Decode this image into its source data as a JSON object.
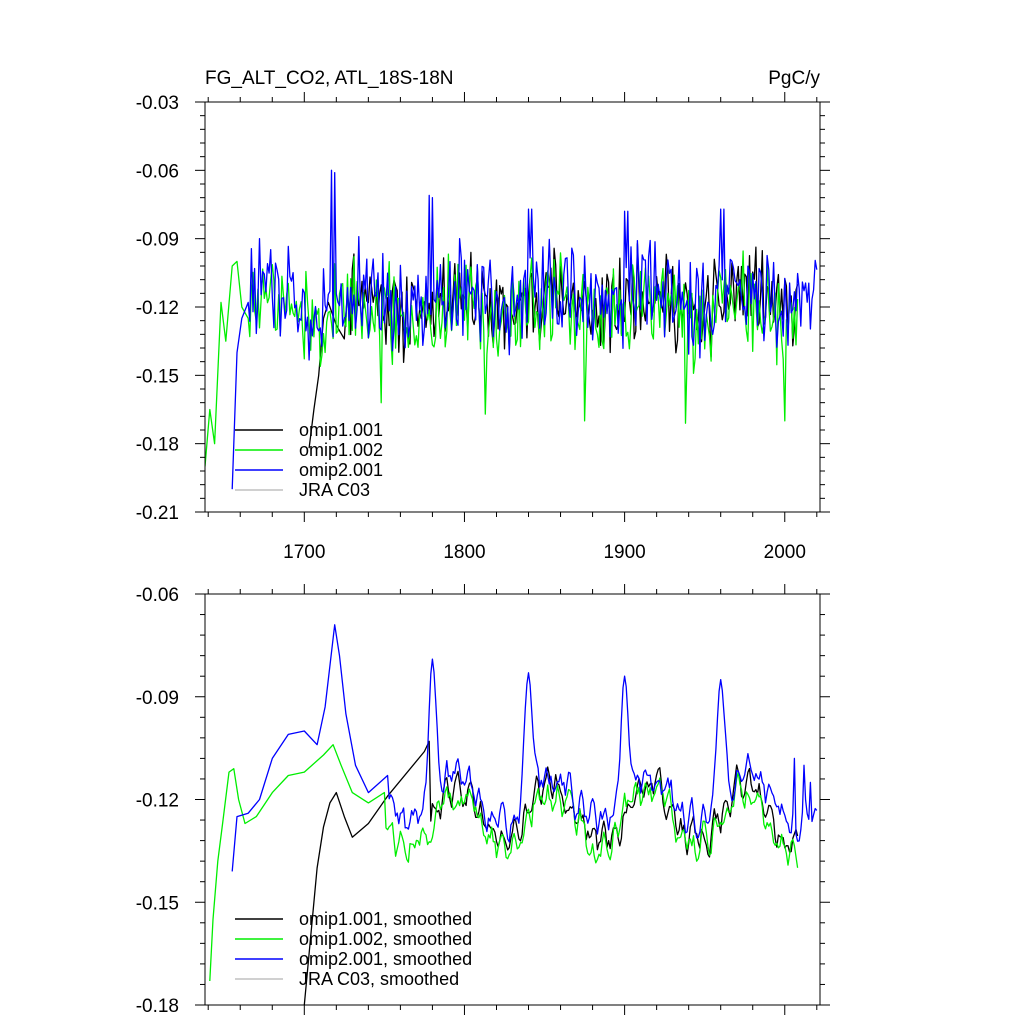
{
  "chart_data": [
    {
      "type": "line",
      "title_left": "FG_ALT_CO2, ATL_18S-18N",
      "title_right": "PgC/y",
      "xlabel": "",
      "ylabel": "",
      "xlim": [
        1638,
        2022
      ],
      "ylim": [
        -0.21,
        -0.03
      ],
      "xticks": [
        1700,
        1800,
        1900,
        2000
      ],
      "xtick_labels": [
        "1700",
        "1800",
        "1900",
        "2000"
      ],
      "yticks": [
        -0.21,
        -0.18,
        -0.15,
        -0.12,
        -0.09,
        -0.06,
        -0.03
      ],
      "ytick_labels": [
        "-0.21",
        "-0.18",
        "-0.15",
        "-0.12",
        "-0.09",
        "-0.06",
        "-0.03"
      ],
      "grid": false,
      "legend_position": "lower-left",
      "series": [
        {
          "name": "omip1.001",
          "color": "#000000",
          "start": 1703,
          "end": 2008,
          "base": -0.118,
          "amp": 0.012,
          "noise": 0.012,
          "points": [
            [
              1703,
              -0.182
            ],
            [
              1706,
              -0.165
            ],
            [
              1709,
              -0.15
            ],
            [
              1712,
              -0.125
            ],
            [
              1715,
              -0.118
            ],
            [
              1720,
              -0.128
            ],
            [
              1725,
              -0.134
            ]
          ]
        },
        {
          "name": "omip1.002",
          "color": "#00ee00",
          "start": 1638,
          "end": 2008,
          "base": -0.121,
          "amp": 0.01,
          "noise": 0.014,
          "points": [
            [
              1638,
              -0.19
            ],
            [
              1641,
              -0.165
            ],
            [
              1644,
              -0.18
            ],
            [
              1648,
              -0.118
            ],
            [
              1651,
              -0.135
            ],
            [
              1655,
              -0.102
            ],
            [
              1658,
              -0.1
            ],
            [
              1661,
              -0.12
            ],
            [
              1665,
              -0.125
            ]
          ],
          "spikes": [
            [
              1748,
              -0.162
            ],
            [
              1813,
              -0.167
            ],
            [
              1875,
              -0.17
            ],
            [
              1938,
              -0.171
            ],
            [
              2000,
              -0.17
            ]
          ]
        },
        {
          "name": "omip2.001",
          "color": "#0000ff",
          "start": 1655,
          "end": 2020,
          "base": -0.116,
          "amp": 0.012,
          "noise": 0.013,
          "points": [
            [
              1655,
              -0.2
            ],
            [
              1658,
              -0.14
            ],
            [
              1661,
              -0.125
            ],
            [
              1665,
              -0.118
            ]
          ],
          "spikes": [
            [
              1717,
              -0.06
            ],
            [
              1719,
              -0.061
            ],
            [
              1778,
              -0.071
            ],
            [
              1780,
              -0.072
            ],
            [
              1840,
              -0.077
            ],
            [
              1842,
              -0.077
            ],
            [
              1900,
              -0.078
            ],
            [
              1902,
              -0.078
            ],
            [
              1960,
              -0.077
            ],
            [
              1962,
              -0.077
            ]
          ]
        },
        {
          "name": "JRA C03",
          "color": "#c0c0c0",
          "values": []
        }
      ]
    },
    {
      "type": "line",
      "title_left": "",
      "title_right": "",
      "xlabel": "",
      "ylabel": "",
      "xlim": [
        1638,
        2022
      ],
      "ylim": [
        -0.18,
        -0.06
      ],
      "xticks": [
        1700,
        1800,
        1900,
        2000
      ],
      "xtick_labels": [],
      "yticks": [
        -0.18,
        -0.15,
        -0.12,
        -0.09,
        -0.06
      ],
      "ytick_labels": [
        "-0.18",
        "-0.15",
        "-0.12",
        "-0.09",
        "-0.06"
      ],
      "grid": false,
      "legend_position": "lower-left",
      "series": [
        {
          "name": "omip1.001, smoothed",
          "color": "#000000",
          "start": 1700,
          "end": 2008,
          "base": -0.124,
          "amp": 0.008,
          "noise": 0.003,
          "points": [
            [
              1700,
              -0.18
            ],
            [
              1704,
              -0.16
            ],
            [
              1708,
              -0.14
            ],
            [
              1712,
              -0.128
            ],
            [
              1716,
              -0.121
            ],
            [
              1720,
              -0.118
            ],
            [
              1725,
              -0.125
            ],
            [
              1730,
              -0.131
            ],
            [
              1740,
              -0.127
            ],
            [
              1752,
              -0.119
            ],
            [
              1775,
              -0.106
            ],
            [
              1778,
              -0.103
            ]
          ]
        },
        {
          "name": "omip1.002, smoothed",
          "color": "#00ee00",
          "start": 1641,
          "end": 2008,
          "base": -0.126,
          "amp": 0.008,
          "noise": 0.003,
          "points": [
            [
              1641,
              -0.173
            ],
            [
              1643,
              -0.155
            ],
            [
              1646,
              -0.138
            ],
            [
              1649,
              -0.127
            ],
            [
              1653,
              -0.112
            ],
            [
              1656,
              -0.111
            ],
            [
              1659,
              -0.12
            ],
            [
              1663,
              -0.127
            ],
            [
              1670,
              -0.125
            ],
            [
              1680,
              -0.118
            ],
            [
              1690,
              -0.113
            ],
            [
              1700,
              -0.112
            ],
            [
              1712,
              -0.107
            ],
            [
              1718,
              -0.104
            ],
            [
              1723,
              -0.11
            ],
            [
              1730,
              -0.118
            ],
            [
              1740,
              -0.121
            ],
            [
              1750,
              -0.118
            ]
          ]
        },
        {
          "name": "omip2.001, smoothed",
          "color": "#0000ff",
          "start": 1655,
          "end": 2020,
          "base": -0.12,
          "amp": 0.007,
          "noise": 0.003,
          "points": [
            [
              1655,
              -0.141
            ],
            [
              1658,
              -0.125
            ],
            [
              1665,
              -0.124
            ],
            [
              1672,
              -0.12
            ],
            [
              1680,
              -0.108
            ],
            [
              1690,
              -0.101
            ],
            [
              1700,
              -0.1
            ],
            [
              1708,
              -0.104
            ],
            [
              1713,
              -0.093
            ],
            [
              1716,
              -0.081
            ],
            [
              1719,
              -0.069
            ],
            [
              1722,
              -0.078
            ],
            [
              1726,
              -0.095
            ],
            [
              1732,
              -0.11
            ],
            [
              1740,
              -0.118
            ],
            [
              1752,
              -0.113
            ]
          ],
          "peaks": [
            [
              1780,
              -0.079
            ],
            [
              1840,
              -0.083
            ],
            [
              1900,
              -0.084
            ],
            [
              1960,
              -0.085
            ]
          ],
          "tail": [
            [
              2006,
              -0.108
            ],
            [
              2012,
              -0.11
            ],
            [
              2016,
              -0.115
            ]
          ]
        },
        {
          "name": "JRA C03, smoothed",
          "color": "#c0c0c0",
          "values": []
        }
      ]
    }
  ]
}
